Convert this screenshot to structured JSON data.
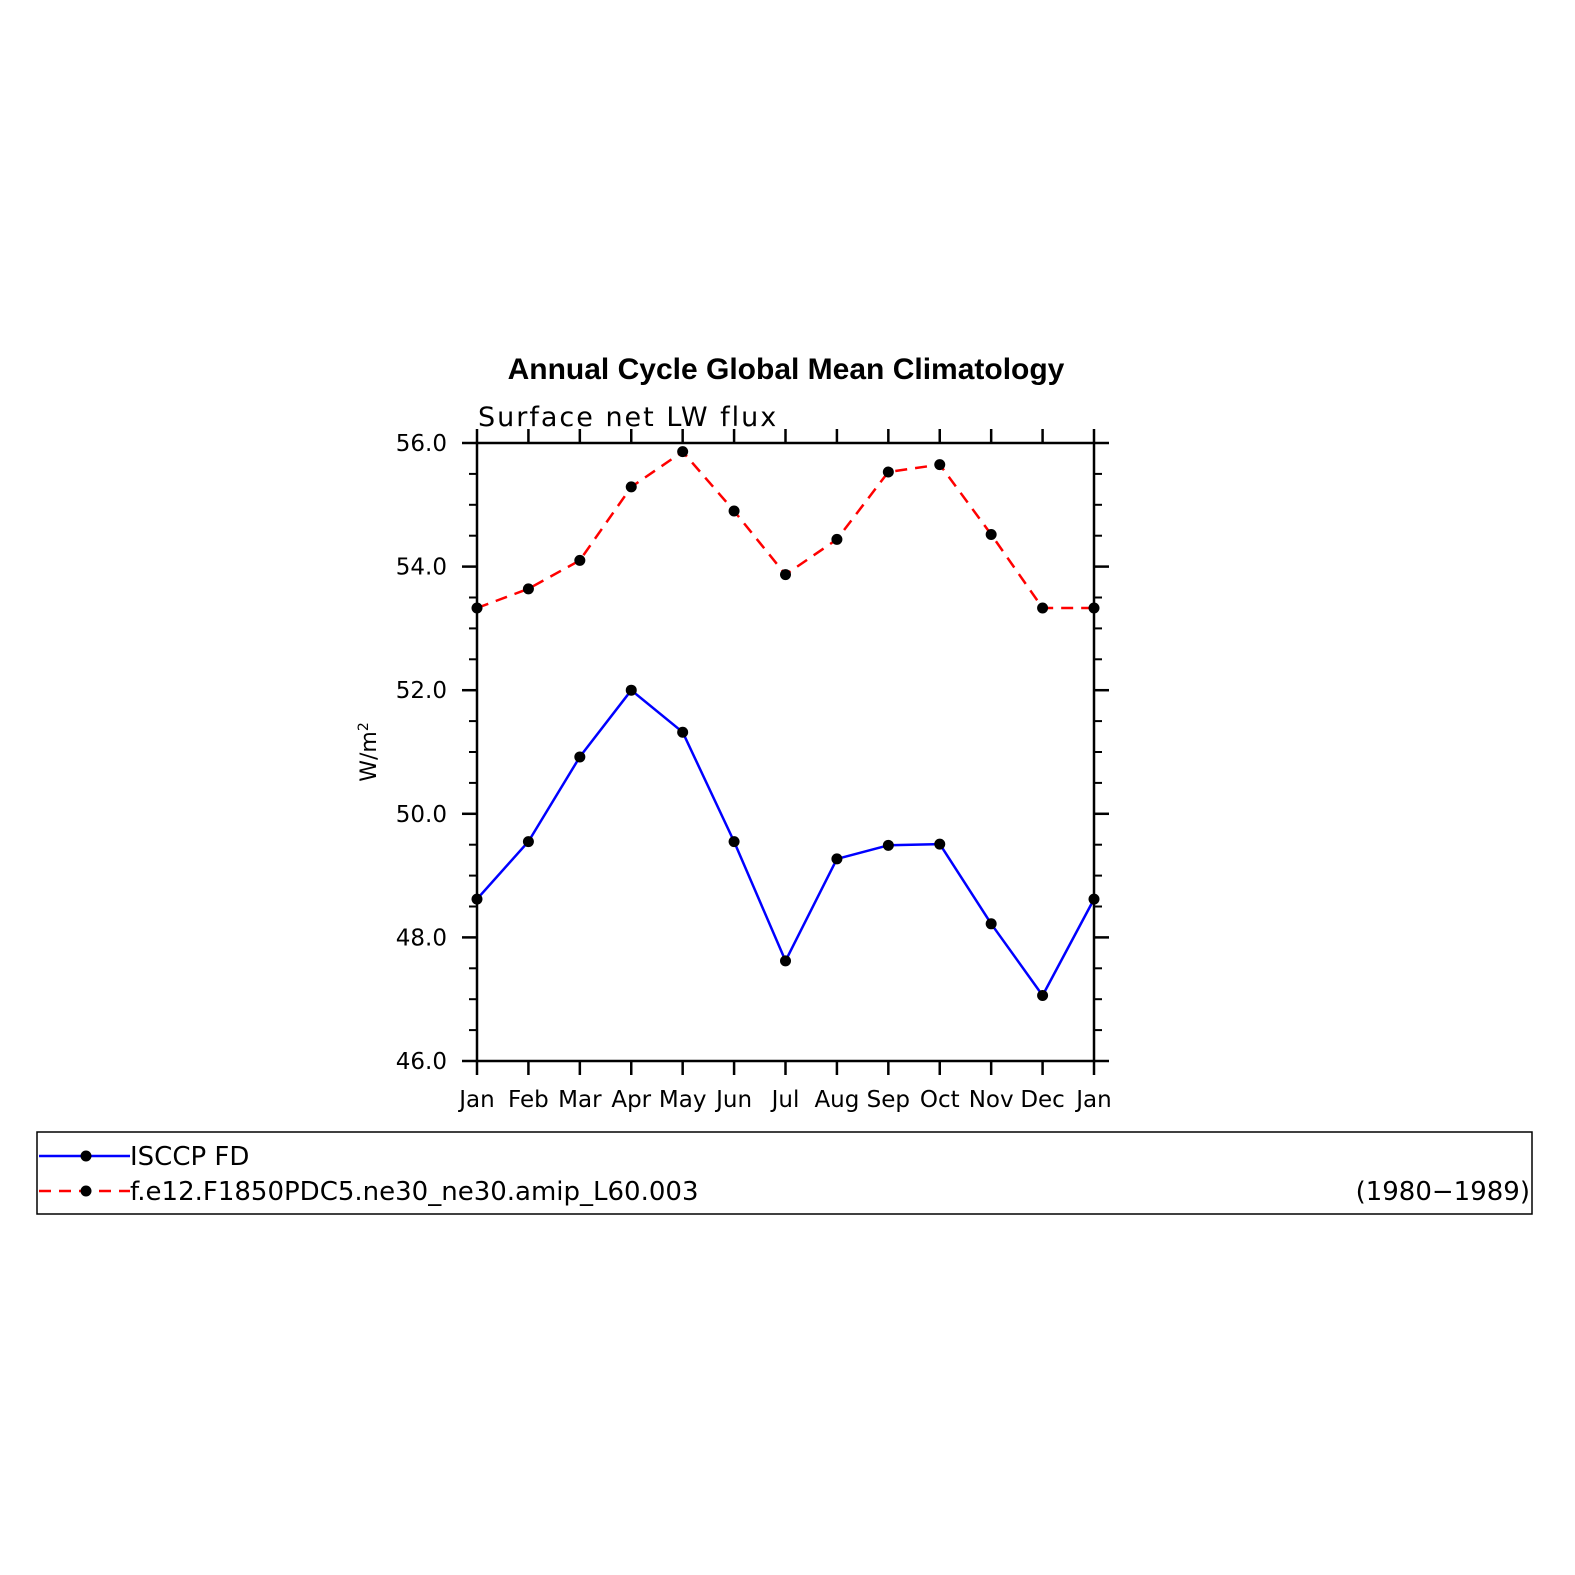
{
  "chart_data": {
    "type": "line",
    "title": "Annual Cycle Global Mean Climatology",
    "subtitle": "Surface net LW flux",
    "ylabel_base": "W/m",
    "ylabel_sup": "2",
    "xlabel": "",
    "categories": [
      "Jan",
      "Feb",
      "Mar",
      "Apr",
      "May",
      "Jun",
      "Jul",
      "Aug",
      "Sep",
      "Oct",
      "Nov",
      "Dec",
      "Jan"
    ],
    "ylim": [
      46.0,
      56.0
    ],
    "yticks": [
      "46.0",
      "48.0",
      "50.0",
      "52.0",
      "54.0",
      "56.0"
    ],
    "ytick_values": [
      46.0,
      48.0,
      50.0,
      52.0,
      54.0,
      56.0
    ],
    "grid": false,
    "series": [
      {
        "name": "ISCCP FD",
        "color": "#0000ff",
        "dash": "solid",
        "marker": "circle",
        "values": [
          48.62,
          49.55,
          50.92,
          52.0,
          51.32,
          49.55,
          47.62,
          49.27,
          49.49,
          49.51,
          48.22,
          47.06,
          48.62
        ]
      },
      {
        "name": "f.e12.F1850PDC5.ne30_ne30.amip_L60.003",
        "color": "#ff0000",
        "dash": "dashed",
        "marker": "circle",
        "values": [
          53.33,
          53.64,
          54.1,
          55.29,
          55.86,
          54.9,
          53.87,
          54.44,
          55.53,
          55.65,
          54.52,
          53.33,
          53.33
        ]
      }
    ],
    "legend": {
      "position": "bottom",
      "period": "(1980−1989)"
    }
  }
}
